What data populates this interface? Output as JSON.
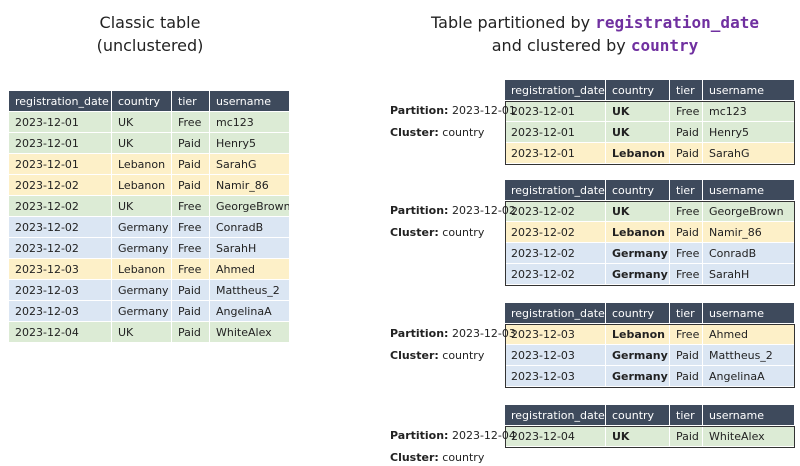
{
  "left": {
    "title": [
      "Classic table",
      "(unclustered)"
    ],
    "table": {
      "header": [
        "registration_date",
        "country",
        "tier",
        "username"
      ],
      "rows": [
        {
          "cells": [
            "2023-12-01",
            "UK",
            "Free",
            "mc123"
          ],
          "color": "#dcebd5"
        },
        {
          "cells": [
            "2023-12-01",
            "UK",
            "Paid",
            "Henry5"
          ],
          "color": "#dcebd5"
        },
        {
          "cells": [
            "2023-12-01",
            "Lebanon",
            "Paid",
            "SarahG"
          ],
          "color": "#fdf0c8"
        },
        {
          "cells": [
            "2023-12-02",
            "Lebanon",
            "Paid",
            "Namir_86"
          ],
          "color": "#fdf0c8"
        },
        {
          "cells": [
            "2023-12-02",
            "UK",
            "Free",
            "GeorgeBrown"
          ],
          "color": "#dcebd5"
        },
        {
          "cells": [
            "2023-12-02",
            "Germany",
            "Free",
            "ConradB"
          ],
          "color": "#dbe6f3"
        },
        {
          "cells": [
            "2023-12-02",
            "Germany",
            "Free",
            "SarahH"
          ],
          "color": "#dbe6f3"
        },
        {
          "cells": [
            "2023-12-03",
            "Lebanon",
            "Free",
            "Ahmed"
          ],
          "color": "#fdf0c8"
        },
        {
          "cells": [
            "2023-12-03",
            "Germany",
            "Paid",
            "Mattheus_2"
          ],
          "color": "#dbe6f3"
        },
        {
          "cells": [
            "2023-12-03",
            "Germany",
            "Paid",
            "AngelinaA"
          ],
          "color": "#dbe6f3"
        },
        {
          "cells": [
            "2023-12-04",
            "UK",
            "Paid",
            "WhiteAlex"
          ],
          "color": "#dcebd5"
        }
      ]
    }
  },
  "right": {
    "title": {
      "prefix": "Table partitioned by",
      "partition_key": "registration_date",
      "middle": "and clustered by",
      "cluster_key": "country"
    },
    "partitions": [
      {
        "partition_label": "Partition:",
        "partition_value": "2023-12-01",
        "cluster_label": "Cluster:",
        "cluster_value": "country",
        "header": [
          "registration_date",
          "country",
          "tier",
          "username"
        ],
        "rows": [
          {
            "cells": [
              "2023-12-01",
              "UK",
              "Free",
              "mc123"
            ],
            "color": "#dcebd5"
          },
          {
            "cells": [
              "2023-12-01",
              "UK",
              "Paid",
              "Henry5"
            ],
            "color": "#dcebd5"
          },
          {
            "cells": [
              "2023-12-01",
              "Lebanon",
              "Paid",
              "SarahG"
            ],
            "color": "#fdf0c8"
          }
        ]
      },
      {
        "partition_label": "Partition:",
        "partition_value": "2023-12-02",
        "cluster_label": "Cluster:",
        "cluster_value": "country",
        "header": [
          "registration_date",
          "country",
          "tier",
          "username"
        ],
        "rows": [
          {
            "cells": [
              "2023-12-02",
              "UK",
              "Free",
              "GeorgeBrown"
            ],
            "color": "#dcebd5"
          },
          {
            "cells": [
              "2023-12-02",
              "Lebanon",
              "Paid",
              "Namir_86"
            ],
            "color": "#fdf0c8"
          },
          {
            "cells": [
              "2023-12-02",
              "Germany",
              "Free",
              "ConradB"
            ],
            "color": "#dbe6f3"
          },
          {
            "cells": [
              "2023-12-02",
              "Germany",
              "Free",
              "SarahH"
            ],
            "color": "#dbe6f3"
          }
        ]
      },
      {
        "partition_label": "Partition:",
        "partition_value": "2023-12-03",
        "cluster_label": "Cluster:",
        "cluster_value": "country",
        "header": [
          "registration_date",
          "country",
          "tier",
          "username"
        ],
        "rows": [
          {
            "cells": [
              "2023-12-03",
              "Lebanon",
              "Free",
              "Ahmed"
            ],
            "color": "#fdf0c8"
          },
          {
            "cells": [
              "2023-12-03",
              "Germany",
              "Paid",
              "Mattheus_2"
            ],
            "color": "#dbe6f3"
          },
          {
            "cells": [
              "2023-12-03",
              "Germany",
              "Paid",
              "AngelinaA"
            ],
            "color": "#dbe6f3"
          }
        ]
      },
      {
        "partition_label": "Partition:",
        "partition_value": "2023-12-04",
        "cluster_label": "Cluster:",
        "cluster_value": "country",
        "header": [
          "registration_date",
          "country",
          "tier",
          "username"
        ],
        "rows": [
          {
            "cells": [
              "2023-12-04",
              "UK",
              "Paid",
              "WhiteAlex"
            ],
            "color": "#dcebd5"
          }
        ]
      }
    ]
  }
}
